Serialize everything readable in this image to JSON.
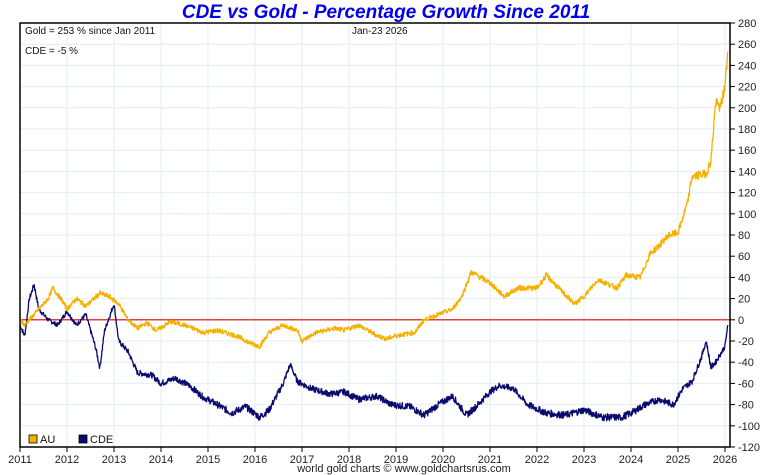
{
  "chart_data": {
    "type": "line",
    "title": "CDE vs Gold - Percentage Growth Since 2011",
    "annotations": {
      "gold_summary": "Gold = 253 % since Jan 2011",
      "cde_summary": "CDE = -5 %",
      "date": "Jan-23  2026"
    },
    "credit": "world gold charts © www.goldchartsrus.com",
    "xlabel": "",
    "ylabel": "",
    "x_ticks": [
      "2011",
      "2012",
      "2013",
      "2014",
      "2015",
      "2016",
      "2017",
      "2018",
      "2019",
      "2020",
      "2021",
      "2022",
      "2023",
      "2024",
      "2025",
      "2026"
    ],
    "y_ticks": [
      "280",
      "260",
      "240",
      "220",
      "200",
      "180",
      "160",
      "140",
      "120",
      "100",
      "80",
      "60",
      "40",
      "20",
      "0",
      "-20",
      "-40",
      "-60",
      "-80",
      "-100",
      "-120"
    ],
    "xlim": [
      2011,
      2026.1
    ],
    "ylim": [
      -120,
      280
    ],
    "grid": true,
    "zero_line_color": "#dd0000",
    "legend": {
      "placement": "bottom-left",
      "entries": [
        {
          "name": "AU",
          "color": "#f5b000"
        },
        {
          "name": "CDE",
          "color": "#0a0a6e"
        }
      ]
    },
    "series": [
      {
        "name": "AU",
        "color": "#f5b000",
        "x": [
          2011.0,
          2011.1,
          2011.3,
          2011.6,
          2011.7,
          2011.9,
          2012.0,
          2012.2,
          2012.4,
          2012.7,
          2012.9,
          2013.1,
          2013.3,
          2013.5,
          2013.7,
          2013.9,
          2014.2,
          2014.5,
          2014.9,
          2015.2,
          2015.6,
          2015.9,
          2016.1,
          2016.3,
          2016.6,
          2016.9,
          2017.0,
          2017.3,
          2017.7,
          2017.9,
          2018.2,
          2018.6,
          2018.8,
          2019.0,
          2019.4,
          2019.6,
          2019.9,
          2020.2,
          2020.4,
          2020.6,
          2020.8,
          2021.0,
          2021.3,
          2021.6,
          2022.0,
          2022.2,
          2022.5,
          2022.8,
          2023.0,
          2023.3,
          2023.7,
          2023.9,
          2024.2,
          2024.4,
          2024.6,
          2024.8,
          2025.0,
          2025.2,
          2025.3,
          2025.6,
          2025.7,
          2025.8,
          2025.9,
          2026.0,
          2026.06
        ],
        "values": [
          0,
          -5,
          5,
          20,
          30,
          18,
          10,
          20,
          13,
          25,
          22,
          15,
          0,
          -8,
          -3,
          -10,
          -2,
          -5,
          -12,
          -10,
          -15,
          -22,
          -25,
          -12,
          -5,
          -10,
          -20,
          -12,
          -8,
          -10,
          -5,
          -15,
          -18,
          -15,
          -12,
          0,
          5,
          10,
          22,
          45,
          40,
          35,
          22,
          30,
          30,
          42,
          28,
          15,
          22,
          38,
          30,
          42,
          40,
          62,
          70,
          80,
          82,
          110,
          135,
          138,
          150,
          205,
          200,
          220,
          253
        ]
      },
      {
        "name": "CDE",
        "color": "#0a0a6e",
        "x": [
          2011.0,
          2011.1,
          2011.2,
          2011.3,
          2011.4,
          2011.6,
          2011.8,
          2012.0,
          2012.2,
          2012.4,
          2012.6,
          2012.7,
          2012.8,
          2013.0,
          2013.1,
          2013.3,
          2013.5,
          2013.8,
          2014.0,
          2014.3,
          2014.6,
          2014.9,
          2015.2,
          2015.5,
          2015.8,
          2016.1,
          2016.3,
          2016.6,
          2016.75,
          2016.9,
          2017.2,
          2017.6,
          2017.9,
          2018.2,
          2018.6,
          2018.9,
          2019.3,
          2019.6,
          2019.9,
          2020.2,
          2020.5,
          2020.7,
          2021.0,
          2021.2,
          2021.5,
          2021.8,
          2022.2,
          2022.6,
          2023.0,
          2023.4,
          2023.8,
          2024.0,
          2024.3,
          2024.6,
          2024.9,
          2025.1,
          2025.3,
          2025.5,
          2025.6,
          2025.7,
          2025.8,
          2026.0,
          2026.06
        ],
        "values": [
          -5,
          -15,
          20,
          33,
          10,
          0,
          -5,
          8,
          -5,
          5,
          -25,
          -45,
          -10,
          15,
          -20,
          -30,
          -50,
          -52,
          -60,
          -55,
          -62,
          -73,
          -80,
          -88,
          -82,
          -92,
          -85,
          -60,
          -42,
          -58,
          -65,
          -70,
          -68,
          -75,
          -72,
          -80,
          -82,
          -90,
          -80,
          -72,
          -90,
          -82,
          -68,
          -62,
          -65,
          -80,
          -88,
          -90,
          -85,
          -92,
          -92,
          -88,
          -80,
          -75,
          -80,
          -65,
          -58,
          -35,
          -20,
          -45,
          -40,
          -25,
          -5
        ]
      }
    ]
  }
}
